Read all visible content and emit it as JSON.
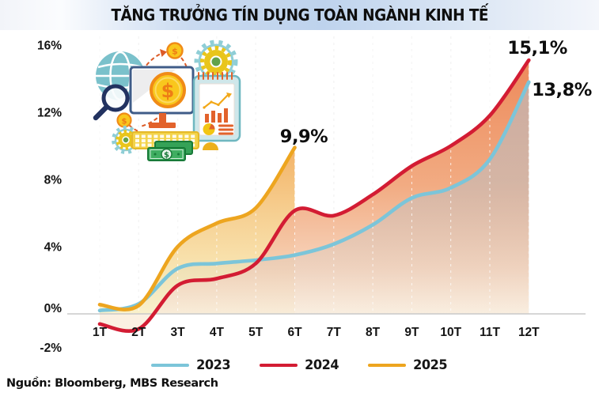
{
  "header": {
    "title": "TĂNG TRƯỞNG TÍN DỤNG TOÀN NGÀNH KINH TẾ"
  },
  "source": {
    "text": "Nguồn: Bloomberg, MBS Research"
  },
  "legend": [
    {
      "label": "2023",
      "color": "#7cc5d9"
    },
    {
      "label": "2024",
      "color": "#d31c33"
    },
    {
      "label": "2025",
      "color": "#eda51f"
    }
  ],
  "chart_data": {
    "type": "area",
    "title": "TĂNG TRƯỞNG TÍN DỤNG TOÀN NGÀNH KINH TẾ",
    "unit": "%",
    "categories": [
      "1T",
      "2T",
      "3T",
      "4T",
      "5T",
      "6T",
      "7T",
      "8T",
      "9T",
      "10T",
      "11T",
      "12T"
    ],
    "y_ticks": [
      "16%",
      "12%",
      "8%",
      "4%",
      "0%",
      "-2%"
    ],
    "y_tick_values": [
      16,
      12,
      8,
      4,
      0,
      -2
    ],
    "ylim": [
      -2,
      16
    ],
    "grid": "vertical-dashed",
    "legend_position": "bottom",
    "series": [
      {
        "name": "2023",
        "color": "#7cc5d9",
        "values": [
          0.2,
          0.6,
          2.7,
          3.0,
          3.2,
          3.5,
          4.15,
          5.3,
          6.9,
          7.5,
          9.2,
          13.8
        ],
        "end_label": "13,8%"
      },
      {
        "name": "2024",
        "color": "#d31c33",
        "values": [
          -0.6,
          -0.9,
          1.7,
          2.1,
          3.0,
          6.15,
          5.85,
          7.1,
          8.8,
          10.0,
          11.8,
          15.1
        ],
        "end_label": "15,1%"
      },
      {
        "name": "2025",
        "color": "#eda51f",
        "values": [
          0.55,
          0.5,
          4.0,
          5.4,
          6.3,
          9.9
        ],
        "end_label": "9,9%"
      }
    ],
    "annotations": [
      {
        "text": "9,9%",
        "series": "2025",
        "at": "6T"
      },
      {
        "text": "15,1%",
        "series": "2024",
        "at": "12T"
      },
      {
        "text": "13,8%",
        "series": "2023",
        "at": "12T"
      }
    ]
  }
}
